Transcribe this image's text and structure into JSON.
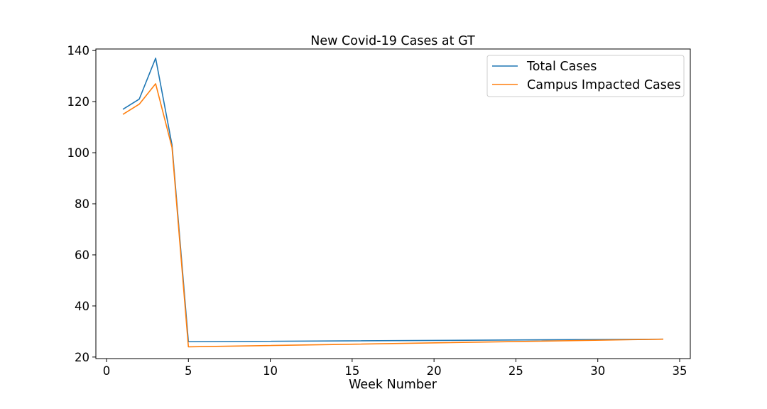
{
  "chart_data": {
    "type": "line",
    "title": "New Covid-19 Cases at GT",
    "xlabel": "Week Number",
    "ylabel": "",
    "xlim": [
      -0.65,
      35.65
    ],
    "ylim": [
      19.4,
      140.6
    ],
    "xticks": [
      0,
      5,
      10,
      15,
      20,
      25,
      30,
      35
    ],
    "yticks": [
      20,
      40,
      60,
      80,
      100,
      120,
      140
    ],
    "grid": false,
    "legend_position": "top-right",
    "series": [
      {
        "name": "Total Cases",
        "color": "#1f77b4",
        "x": [
          1,
          2,
          3,
          4,
          5,
          34
        ],
        "y": [
          117,
          121,
          137,
          103,
          26,
          27
        ]
      },
      {
        "name": "Campus Impacted Cases",
        "color": "#ff7f0e",
        "x": [
          1,
          2,
          3,
          4,
          5,
          34
        ],
        "y": [
          115,
          119,
          127,
          102,
          24,
          27
        ]
      }
    ]
  }
}
